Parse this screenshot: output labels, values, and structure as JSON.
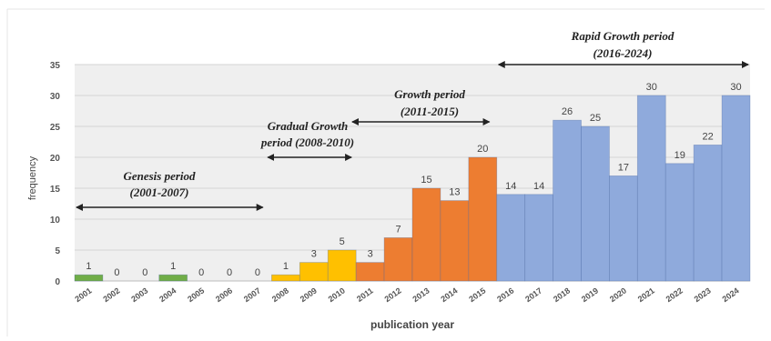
{
  "chart_data": {
    "type": "bar",
    "xlabel": "publication year",
    "ylabel": "frequency",
    "ylim": [
      0,
      35
    ],
    "yticks": [
      0,
      5,
      10,
      15,
      20,
      25,
      30,
      35
    ],
    "grid": "horizontal",
    "categories": [
      "2001",
      "2002",
      "2003",
      "2004",
      "2005",
      "2006",
      "2007",
      "2008",
      "2009",
      "2010",
      "2011",
      "2012",
      "2013",
      "2014",
      "2015",
      "2016",
      "2017",
      "2018",
      "2019",
      "2020",
      "2021",
      "2022",
      "2023",
      "2024"
    ],
    "values": [
      1,
      0,
      0,
      1,
      0,
      0,
      0,
      1,
      3,
      5,
      3,
      7,
      15,
      13,
      20,
      14,
      14,
      26,
      25,
      17,
      30,
      19,
      22,
      30
    ],
    "periods": [
      {
        "line1": "Genesis period",
        "line2": "(2001-2007)",
        "start": "2001",
        "end": "2007",
        "color": "#70ad47"
      },
      {
        "line1": "Gradual Growth",
        "line2": "period (2008-2010)",
        "start": "2008",
        "end": "2010",
        "color": "#ffc000"
      },
      {
        "line1": "Growth period",
        "line2": "(2011-2015)",
        "start": "2011",
        "end": "2015",
        "color": "#ed7d31"
      },
      {
        "line1": "Rapid Growth period",
        "line2": "(2016-2024)",
        "start": "2016",
        "end": "2024",
        "color": "#8faadc"
      }
    ]
  }
}
